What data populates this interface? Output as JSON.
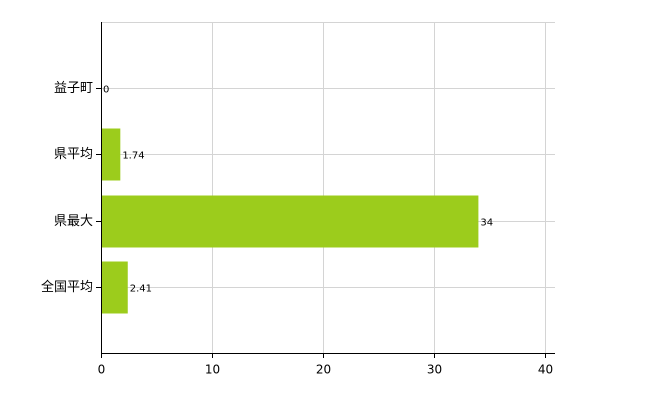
{
  "chart_data": {
    "type": "bar",
    "orientation": "horizontal",
    "categories": [
      "益子町",
      "県平均",
      "県最大",
      "全国平均"
    ],
    "values": [
      0,
      1.74,
      34,
      2.41
    ],
    "color": "#9ccc1c",
    "xlim": [
      0,
      40
    ],
    "xticks": [
      0,
      10,
      20,
      30,
      40
    ],
    "grid": true
  }
}
